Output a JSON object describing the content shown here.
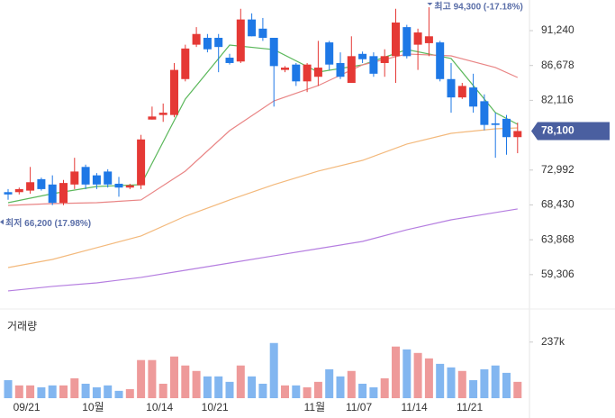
{
  "chart_data": [
    {
      "type": "candlestick",
      "categories": [
        null,
        null,
        "09/21",
        null,
        null,
        null,
        null,
        null,
        "10월",
        null,
        null,
        null,
        null,
        null,
        "10/14",
        null,
        null,
        null,
        null,
        "10/21",
        null,
        null,
        null,
        null,
        null,
        null,
        null,
        null,
        "11월",
        null,
        null,
        null,
        "11/07",
        null,
        null,
        null,
        null,
        "11/14",
        null,
        null,
        null,
        null,
        "11/21",
        null,
        null,
        null,
        null
      ],
      "ohlc": [
        [
          70100,
          70500,
          69100,
          69800
        ],
        [
          70100,
          70700,
          69800,
          70500
        ],
        [
          70300,
          73400,
          69900,
          71400
        ],
        [
          71800,
          72000,
          70300,
          70500
        ],
        [
          71100,
          72300,
          68400,
          68700
        ],
        [
          68700,
          71700,
          68400,
          71300
        ],
        [
          71100,
          74600,
          70500,
          72800
        ],
        [
          73400,
          73700,
          70500,
          71100
        ],
        [
          72300,
          72600,
          70500,
          71100
        ],
        [
          72800,
          73100,
          70700,
          71100
        ],
        [
          71200,
          72100,
          69500,
          70700
        ],
        [
          70700,
          71200,
          70500,
          71000
        ],
        [
          71000,
          77600,
          70500,
          77000
        ],
        [
          79600,
          81300,
          79600,
          80000
        ],
        [
          80200,
          81700,
          79300,
          80500
        ],
        [
          80200,
          87000,
          79900,
          86100
        ],
        [
          84900,
          89400,
          84600,
          88900
        ],
        [
          89400,
          91700,
          89100,
          90800
        ],
        [
          90300,
          90800,
          88400,
          88800
        ],
        [
          90300,
          90800,
          85800,
          89100
        ],
        [
          87700,
          88200,
          86800,
          87000
        ],
        [
          87200,
          94100,
          87000,
          92700
        ],
        [
          92700,
          93500,
          90500,
          90500
        ],
        [
          91500,
          92900,
          89900,
          90300
        ],
        [
          90300,
          90300,
          81300,
          86600
        ],
        [
          86100,
          86600,
          85800,
          86400
        ],
        [
          86800,
          87000,
          84000,
          84600
        ],
        [
          84600,
          87000,
          83200,
          86800
        ],
        [
          85200,
          89900,
          84000,
          86400
        ],
        [
          89700,
          89900,
          86100,
          86800
        ],
        [
          87000,
          88400,
          84900,
          85200
        ],
        [
          84400,
          90500,
          84400,
          87900
        ],
        [
          88200,
          88500,
          87000,
          87500
        ],
        [
          87900,
          88400,
          85200,
          85600
        ],
        [
          87000,
          88800,
          85200,
          87900
        ],
        [
          87900,
          94100,
          84400,
          92300
        ],
        [
          91700,
          92000,
          87600,
          87900
        ],
        [
          89400,
          91500,
          86100,
          91000
        ],
        [
          89600,
          94300,
          87900,
          90500
        ],
        [
          89700,
          89900,
          84600,
          84900
        ],
        [
          84900,
          87000,
          80500,
          82500
        ],
        [
          82500,
          84400,
          82300,
          84000
        ],
        [
          83800,
          85600,
          80500,
          81300
        ],
        [
          82000,
          82900,
          78200,
          78900
        ],
        [
          79100,
          80500,
          74600,
          78900
        ],
        [
          79700,
          80200,
          75000,
          77300
        ],
        [
          77300,
          79200,
          75200,
          78100
        ]
      ],
      "up_color": "#e53935",
      "down_color": "#1e78e6",
      "lines": [
        {
          "color": "#5cb85c",
          "x": [
            0,
            4,
            8,
            12,
            16,
            20,
            24,
            28,
            32,
            36,
            40,
            44,
            46
          ],
          "values": [
            68720,
            69900,
            70840,
            71080,
            82280,
            89350,
            88760,
            85820,
            86760,
            88760,
            87590,
            80510,
            78980
          ]
        },
        {
          "color": "#e98585",
          "x": [
            0,
            4,
            8,
            12,
            16,
            20,
            24,
            28,
            32,
            36,
            40,
            44,
            46
          ],
          "values": [
            68370,
            68600,
            68720,
            69080,
            72850,
            78150,
            82040,
            84050,
            86760,
            88180,
            87940,
            86410,
            85110
          ]
        },
        {
          "color": "#f3b97c",
          "x": [
            0,
            4,
            8,
            12,
            16,
            20,
            24,
            28,
            32,
            36,
            40,
            44,
            46
          ],
          "values": [
            60230,
            61290,
            62830,
            64360,
            66950,
            69080,
            71080,
            72850,
            74260,
            76390,
            77800,
            78390,
            78510
          ]
        },
        {
          "color": "#b57ee0",
          "x": [
            0,
            4,
            8,
            12,
            16,
            20,
            24,
            28,
            32,
            36,
            40,
            44,
            46
          ],
          "values": [
            57170,
            57760,
            58230,
            58940,
            59880,
            60820,
            61770,
            62710,
            63650,
            65180,
            66480,
            67430,
            67900
          ]
        }
      ],
      "ylim": [
        55750,
        95250
      ],
      "yticks": [
        {
          "value": 59306,
          "label": "59,306"
        },
        {
          "value": 63868,
          "label": "63,868"
        },
        {
          "value": 68430,
          "label": "68,430"
        },
        {
          "value": 72992,
          "label": "72,992"
        },
        {
          "value": 82116,
          "label": "82,116"
        },
        {
          "value": 86678,
          "label": "86,678"
        },
        {
          "value": 91240,
          "label": "91,240"
        }
      ],
      "last_price": {
        "value": 78100,
        "label": "78,100"
      },
      "annotations": [
        {
          "text": "최고 94,300 (-17.18%)",
          "index": 38,
          "value": 94300
        },
        {
          "text": "최저 66,200 (17.98%)",
          "value": 66200
        }
      ]
    },
    {
      "type": "bar",
      "title": "거래량",
      "values": [
        76000,
        54000,
        54000,
        46000,
        54000,
        54000,
        84000,
        61000,
        46000,
        54000,
        31000,
        38000,
        161000,
        161000,
        61000,
        176000,
        138000,
        115000,
        92000,
        92000,
        69000,
        138000,
        92000,
        61000,
        233000,
        54000,
        54000,
        46000,
        69000,
        122000,
        92000,
        115000,
        61000,
        46000,
        84000,
        218000,
        206000,
        191000,
        168000,
        145000,
        130000,
        115000,
        76000,
        122000,
        138000,
        107000,
        69000
      ],
      "up_color": "#ee9a9a",
      "down_color": "#82b6f0",
      "ylim": [
        0,
        350000
      ],
      "yticks": [
        {
          "value": 237000,
          "label": "237k"
        }
      ]
    }
  ]
}
